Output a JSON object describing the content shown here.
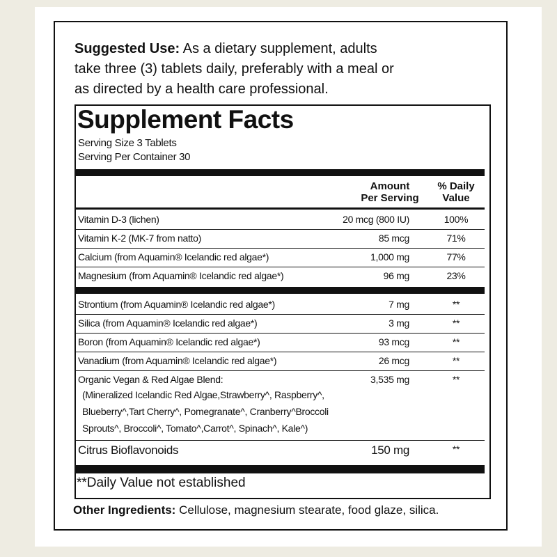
{
  "suggested_use": {
    "label": "Suggested Use:",
    "lines": [
      "As a dietary supplement, adults",
      "take three (3) tablets daily, preferably with a meal or",
      "as directed by a health care professional."
    ]
  },
  "facts": {
    "title": "Supplement Facts",
    "serving_size": "Serving Size 3 Tablets",
    "servings": "Serving Per Container 30",
    "header": {
      "amount": [
        "Amount",
        "Per Serving"
      ],
      "dv": [
        "% Daily",
        "Value"
      ]
    },
    "groups": [
      [
        {
          "name": "Vitamin D-3 (lichen)",
          "amount": "20 mcg (800 IU)",
          "dv": "100%"
        },
        {
          "name": "Vitamin K-2 (MK-7 from natto)",
          "amount": "85 mcg",
          "dv": "71%"
        },
        {
          "name": "Calcium (from Aquamin® Icelandic red algae*)",
          "amount": "1,000 mg",
          "dv": "77%"
        },
        {
          "name": "Magnesium (from Aquamin® Icelandic red algae*)",
          "amount": "96 mg",
          "dv": "23%"
        }
      ],
      [
        {
          "name": "Strontium (from Aquamin® Icelandic red algae*)",
          "amount": "7 mg",
          "dv": "**"
        },
        {
          "name": "Silica (from Aquamin® Icelandic red algae*)",
          "amount": "3 mg",
          "dv": "**"
        },
        {
          "name": "Boron (from Aquamin® Icelandic red algae*)",
          "amount": "93 mcg",
          "dv": "**"
        },
        {
          "name": "Vanadium (from Aquamin® Icelandic red algae*)",
          "amount": "26 mcg",
          "dv": "**"
        },
        {
          "name": "Organic Vegan & Red Algae Blend:",
          "amount": "3,535 mg",
          "dv": "**",
          "detail": [
            "(Mineralized Icelandic Red Algae,Strawberry^, Raspberry^,",
            "Blueberry^,Tart Cherry^, Pomegranate^, Cranberry^Broccoli",
            "Sprouts^, Broccoli^, Tomato^,Carrot^, Spinach^, Kale^)"
          ]
        },
        {
          "name": "Citrus Bioflavonoids",
          "amount": "150 mg",
          "dv": "**"
        }
      ]
    ],
    "footnote": "**Daily Value not established"
  },
  "other_ingredients": {
    "label": "Other Ingredients:",
    "text": "Cellulose, magnesium stearate, food glaze, silica."
  }
}
